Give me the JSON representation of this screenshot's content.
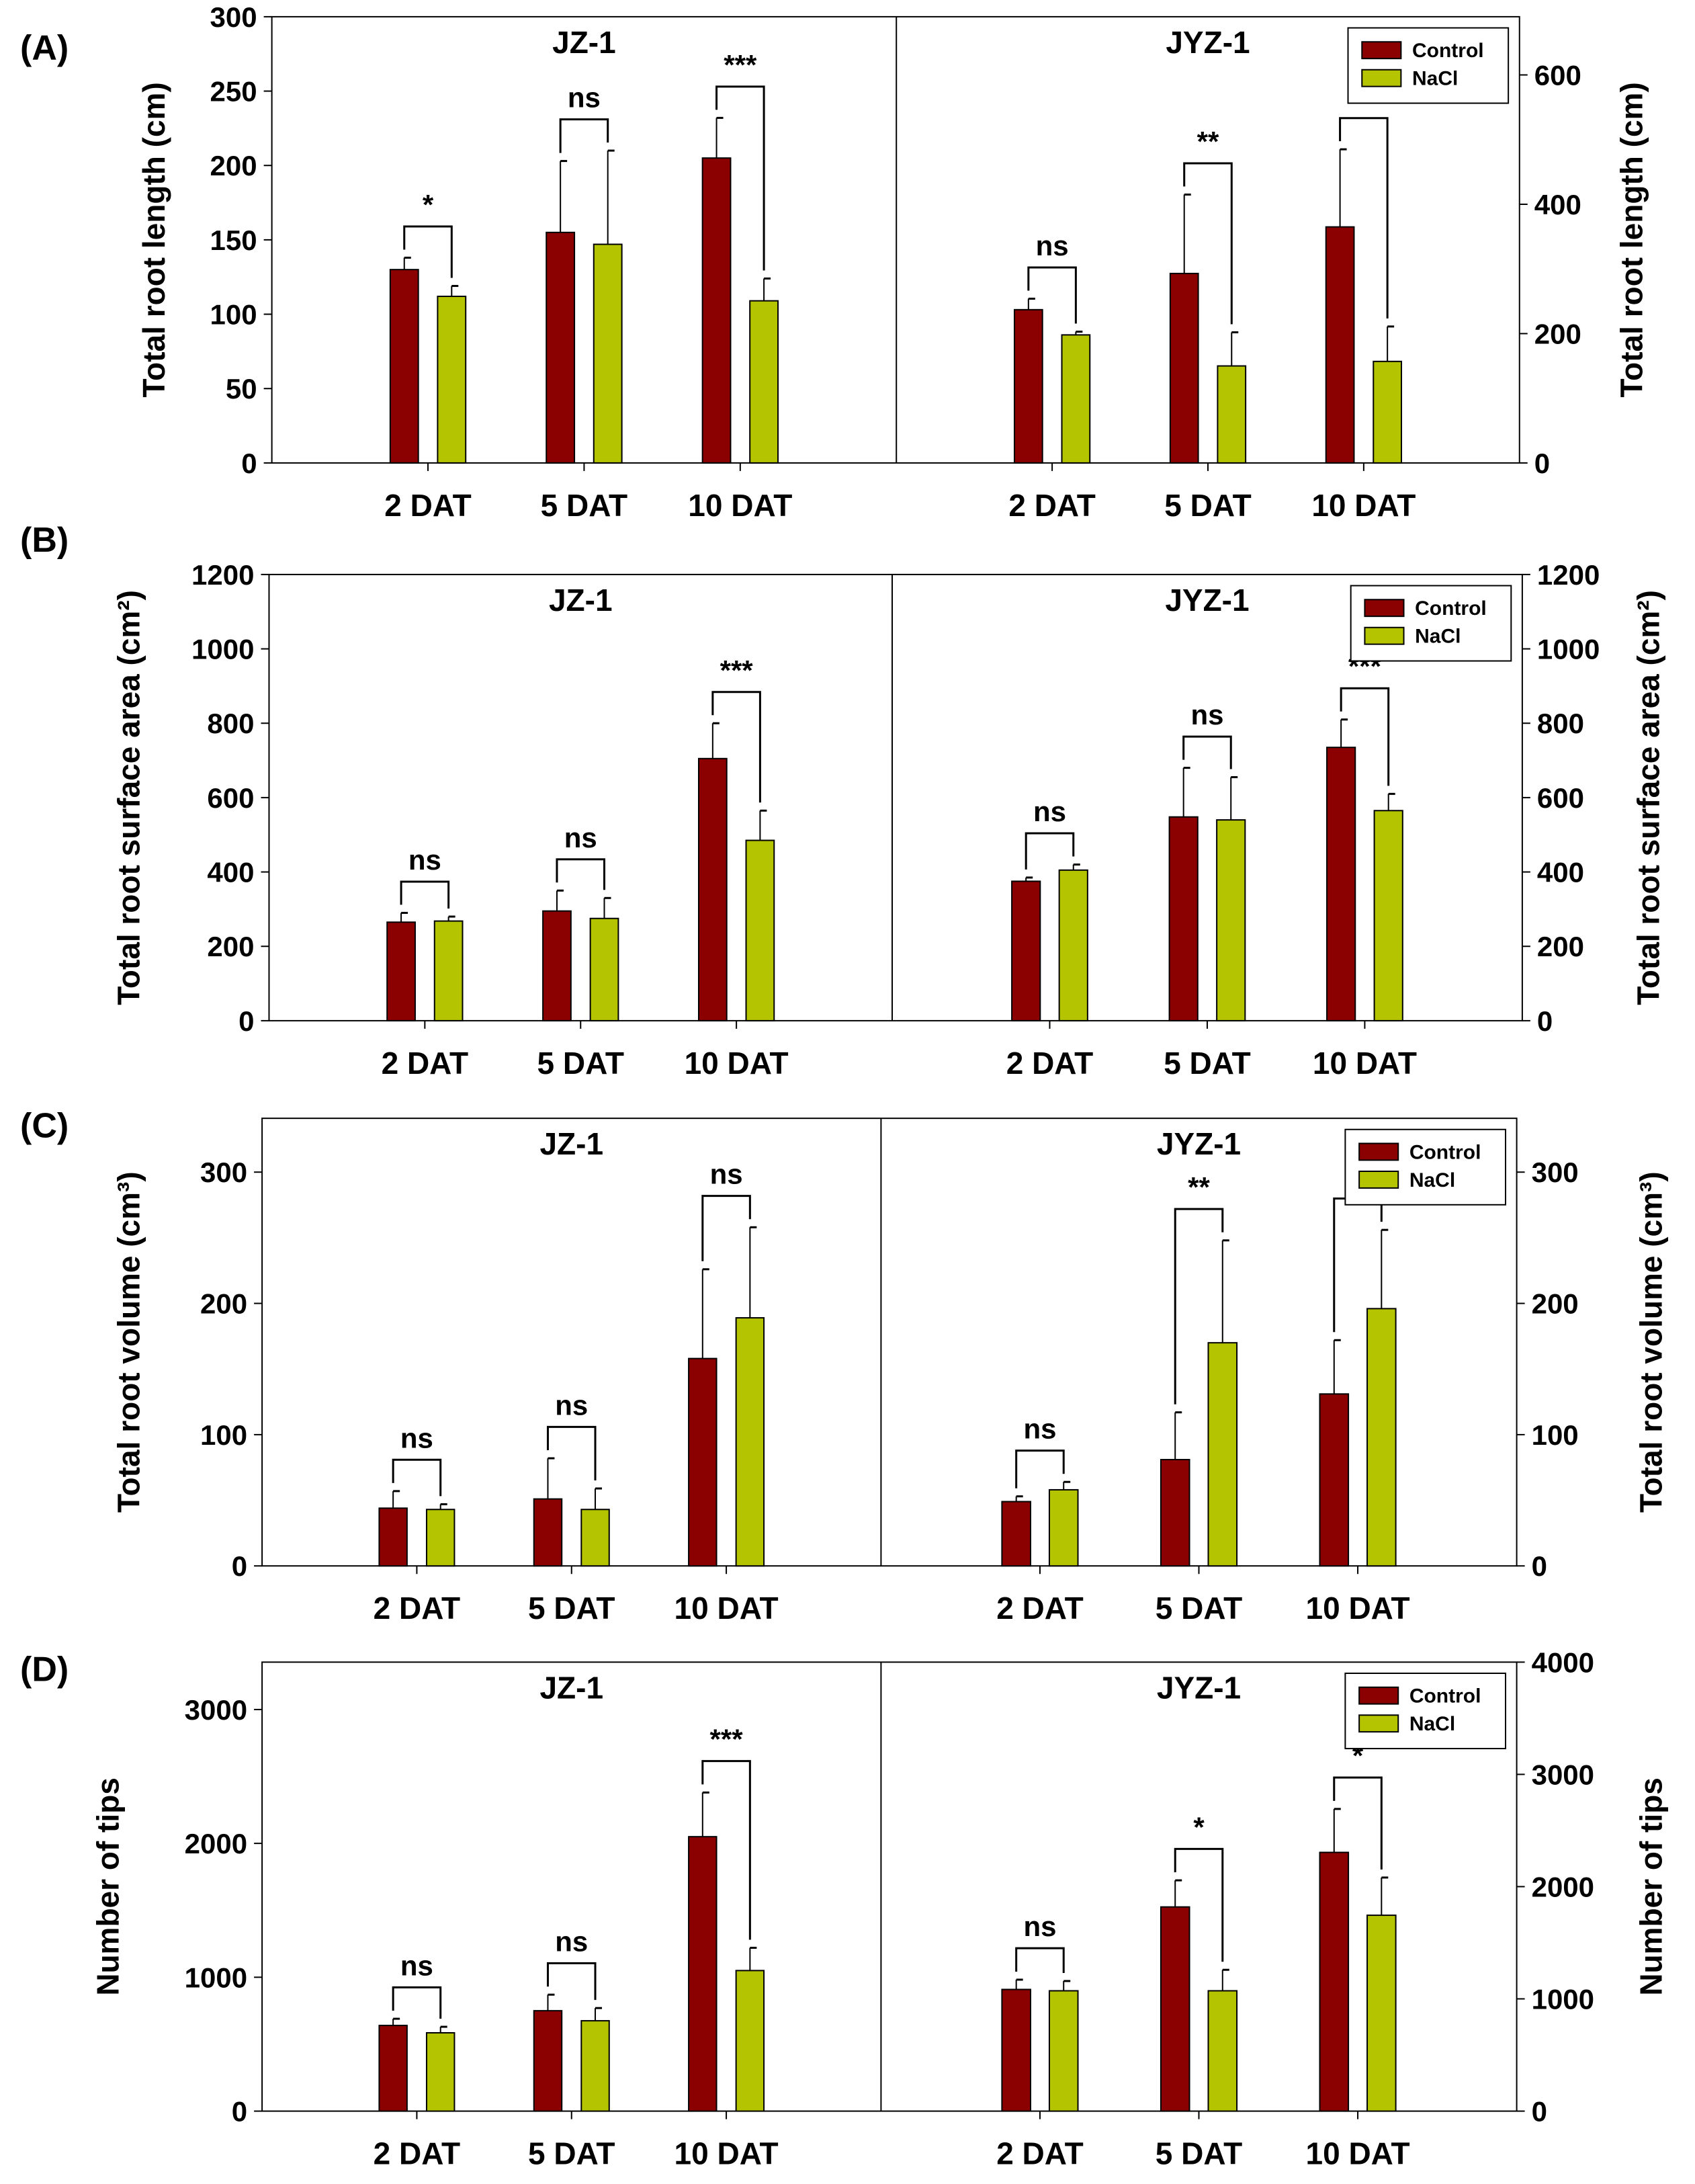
{
  "chart_data": [
    {
      "panel": "(A)",
      "type": "bar",
      "ylabel_left": "Total root length (cm)",
      "ylabel_right": "Total root length (cm)",
      "categories": [
        "2 DAT",
        "5 DAT",
        "10 DAT"
      ],
      "legend": {
        "entries": [
          "Control",
          "NaCl"
        ],
        "placement": "top-right of JYZ-1"
      },
      "subplots": [
        {
          "title": "JZ-1",
          "axis": "left",
          "ylim": [
            0,
            300
          ],
          "ticks": [
            0,
            50,
            100,
            150,
            200,
            250,
            300
          ],
          "series": [
            {
              "name": "Control",
              "values": [
                130,
                155,
                205
              ],
              "err_top": [
                138,
                203,
                232
              ]
            },
            {
              "name": "NaCl",
              "values": [
                112,
                147,
                109
              ],
              "err_top": [
                119,
                210,
                124
              ]
            }
          ],
          "significance": [
            "*",
            "ns",
            "***"
          ]
        },
        {
          "title": "JYZ-1",
          "axis": "right",
          "ylim": [
            0,
            690
          ],
          "ticks": [
            0,
            200,
            400,
            600
          ],
          "series": [
            {
              "name": "Control",
              "values": [
                237,
                293,
                365
              ],
              "err_top": [
                254,
                415,
                485
              ]
            },
            {
              "name": "NaCl",
              "values": [
                198,
                150,
                157
              ],
              "err_top": [
                203,
                202,
                211
              ]
            }
          ],
          "significance": [
            "ns",
            "**",
            "***"
          ]
        }
      ]
    },
    {
      "panel": "(B)",
      "type": "bar",
      "ylabel_left": "Total root surface area (cm²)",
      "ylabel_right": "Total root surface area (cm²)",
      "categories": [
        "2 DAT",
        "5 DAT",
        "10 DAT"
      ],
      "legend": {
        "entries": [
          "Control",
          "NaCl"
        ],
        "placement": "top-right of JYZ-1"
      },
      "subplots": [
        {
          "title": "JZ-1",
          "axis": "left",
          "ylim": [
            0,
            1200
          ],
          "ticks": [
            0,
            200,
            400,
            600,
            800,
            1000,
            1200
          ],
          "series": [
            {
              "name": "Control",
              "values": [
                265,
                295,
                705
              ],
              "err_top": [
                290,
                350,
                800
              ]
            },
            {
              "name": "NaCl",
              "values": [
                268,
                275,
                485
              ],
              "err_top": [
                280,
                330,
                565
              ]
            }
          ],
          "significance": [
            "ns",
            "ns",
            "***"
          ]
        },
        {
          "title": "JYZ-1",
          "axis": "right",
          "ylim": [
            0,
            1200
          ],
          "ticks": [
            0,
            200,
            400,
            600,
            800,
            1000,
            1200
          ],
          "series": [
            {
              "name": "Control",
              "values": [
                375,
                548,
                735
              ],
              "err_top": [
                385,
                680,
                810
              ]
            },
            {
              "name": "NaCl",
              "values": [
                405,
                540,
                565
              ],
              "err_top": [
                420,
                655,
                610
              ]
            }
          ],
          "significance": [
            "ns",
            "ns",
            "***"
          ]
        }
      ]
    },
    {
      "panel": "(C)",
      "type": "bar",
      "ylabel_left": "Total root volume (cm³)",
      "ylabel_right": "Total root volume (cm³)",
      "categories": [
        "2 DAT",
        "5 DAT",
        "10 DAT"
      ],
      "legend": {
        "entries": [
          "Control",
          "NaCl"
        ],
        "placement": "top-right of JYZ-1"
      },
      "subplots": [
        {
          "title": "JZ-1",
          "axis": "left",
          "ylim": [
            0,
            341
          ],
          "ticks": [
            0,
            100,
            200,
            300
          ],
          "series": [
            {
              "name": "Control",
              "values": [
                44,
                51,
                158
              ],
              "err_top": [
                57,
                82,
                226
              ]
            },
            {
              "name": "NaCl",
              "values": [
                43,
                43,
                189
              ],
              "err_top": [
                47,
                59,
                258
              ]
            }
          ],
          "significance": [
            "ns",
            "ns",
            "ns"
          ]
        },
        {
          "title": "JYZ-1",
          "axis": "right",
          "ylim": [
            0,
            341
          ],
          "ticks": [
            0,
            100,
            200,
            300
          ],
          "series": [
            {
              "name": "Control",
              "values": [
                49,
                81,
                131
              ],
              "err_top": [
                53,
                117,
                172
              ]
            },
            {
              "name": "NaCl",
              "values": [
                58,
                170,
                196
              ],
              "err_top": [
                64,
                248,
                256
              ]
            }
          ],
          "significance": [
            "ns",
            "**",
            "*"
          ]
        }
      ]
    },
    {
      "panel": "(D)",
      "type": "bar",
      "ylabel_left": "Number of tips",
      "ylabel_right": "Number of tips",
      "categories": [
        "2 DAT",
        "5 DAT",
        "10 DAT"
      ],
      "legend": {
        "entries": [
          "Control",
          "NaCl"
        ],
        "placement": "top-right of JYZ-1"
      },
      "subplots": [
        {
          "title": "JZ-1",
          "axis": "left",
          "ylim": [
            0,
            3354
          ],
          "ticks": [
            0,
            1000,
            2000,
            3000
          ],
          "series": [
            {
              "name": "Control",
              "values": [
                640,
                750,
                2050
              ],
              "err_top": [
                690,
                870,
                2380
              ]
            },
            {
              "name": "NaCl",
              "values": [
                585,
                675,
                1050
              ],
              "err_top": [
                630,
                770,
                1220
              ]
            }
          ],
          "significance": [
            "ns",
            "ns",
            "***"
          ]
        },
        {
          "title": "JYZ-1",
          "axis": "right",
          "ylim": [
            0,
            4000
          ],
          "ticks": [
            0,
            1000,
            2000,
            3000,
            4000
          ],
          "series": [
            {
              "name": "Control",
              "values": [
                1084,
                1819,
                2305
              ],
              "err_top": [
                1171,
                2056,
                2692
              ]
            },
            {
              "name": "NaCl",
              "values": [
                1072,
                1072,
                1745
              ],
              "err_top": [
                1159,
                1259,
                2081
              ]
            }
          ],
          "significance": [
            "ns",
            "*",
            "*"
          ]
        }
      ]
    }
  ],
  "colors": {
    "Control": "#8b0000",
    "NaCl": "#b5c400"
  }
}
